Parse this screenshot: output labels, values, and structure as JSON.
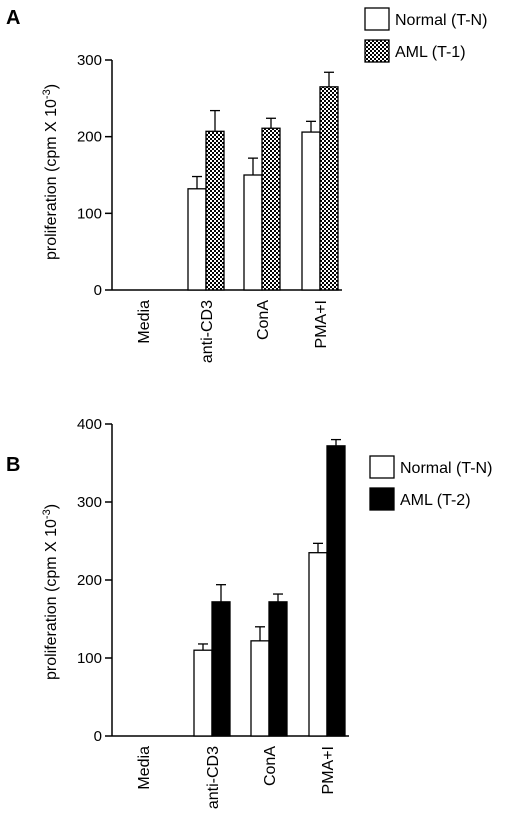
{
  "chart_data": [
    {
      "panel_label": "A",
      "type": "bar",
      "categories": [
        "Media",
        "anti-CD3",
        "ConA",
        "PMA+I"
      ],
      "ylabel_main": "proliferation  (cpm X 10",
      "ylabel_exp": "-3",
      "ylabel_close": ")",
      "ylim": [
        0,
        300
      ],
      "yticks": [
        "0",
        "100",
        "200",
        "300"
      ],
      "series": [
        {
          "name": "Normal (T-N)",
          "values": [
            0,
            132,
            150,
            206
          ],
          "errors": [
            0,
            16,
            22,
            14
          ],
          "fill": "white"
        },
        {
          "name": "AML (T-1)",
          "values": [
            0,
            207,
            211,
            265
          ],
          "errors": [
            0,
            27,
            13,
            19
          ],
          "fill": "pattern"
        }
      ]
    },
    {
      "panel_label": "B",
      "type": "bar",
      "categories": [
        "Media",
        "anti-CD3",
        "ConA",
        "PMA+I"
      ],
      "ylabel_main": "proliferation  (cpm X 10",
      "ylabel_exp": "-3",
      "ylabel_close": ")",
      "ylim": [
        0,
        400
      ],
      "yticks": [
        "0",
        "100",
        "200",
        "300",
        "400"
      ],
      "series": [
        {
          "name": "Normal (T-N)",
          "values": [
            0,
            110,
            122,
            235
          ],
          "errors": [
            0,
            8,
            18,
            12
          ],
          "fill": "white"
        },
        {
          "name": "AML (T-2)",
          "values": [
            0,
            172,
            172,
            372
          ],
          "errors": [
            0,
            22,
            10,
            8
          ],
          "fill": "black"
        }
      ]
    }
  ],
  "colors": {
    "ink": "#000000",
    "background": "#ffffff"
  }
}
